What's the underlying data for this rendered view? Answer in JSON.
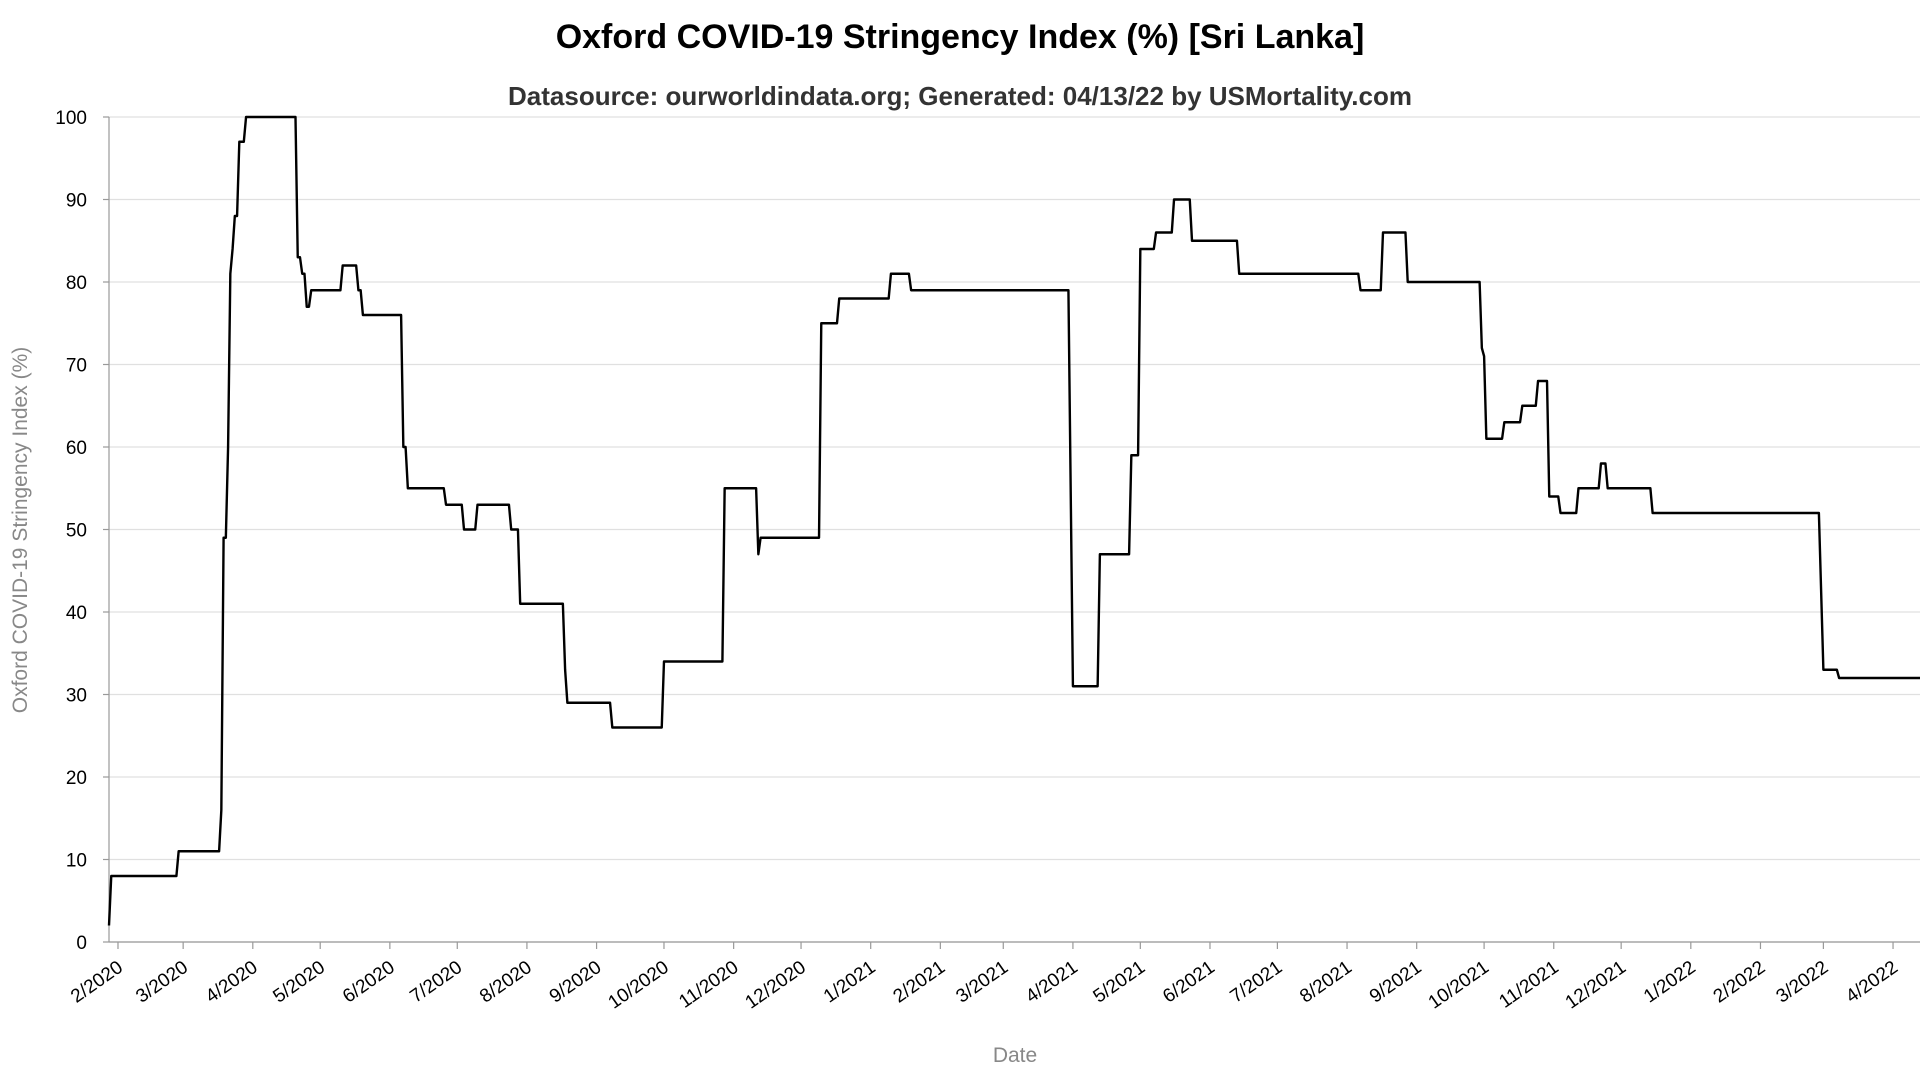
{
  "chart_data": {
    "type": "line",
    "title": "Oxford COVID-19 Stringency Index (%) [Sri Lanka]",
    "subtitle": "Datasource: ourworldindata.org; Generated: 04/13/22 by USMortality.com",
    "xlabel": "Date",
    "ylabel": "Oxford COVID-19 Stringency Index (%)",
    "ylim": [
      0,
      100
    ],
    "xlim": [
      "2020-01-28",
      "2022-04-13"
    ],
    "grid": "horizontal",
    "y_ticks": [
      0,
      10,
      20,
      30,
      40,
      50,
      60,
      70,
      80,
      90,
      100
    ],
    "x_ticks": [
      {
        "date": "2020-02-01",
        "label": "2/2020"
      },
      {
        "date": "2020-03-01",
        "label": "3/2020"
      },
      {
        "date": "2020-04-01",
        "label": "4/2020"
      },
      {
        "date": "2020-05-01",
        "label": "5/2020"
      },
      {
        "date": "2020-06-01",
        "label": "6/2020"
      },
      {
        "date": "2020-07-01",
        "label": "7/2020"
      },
      {
        "date": "2020-08-01",
        "label": "8/2020"
      },
      {
        "date": "2020-09-01",
        "label": "9/2020"
      },
      {
        "date": "2020-10-01",
        "label": "10/2020"
      },
      {
        "date": "2020-11-01",
        "label": "11/2020"
      },
      {
        "date": "2020-12-01",
        "label": "12/2020"
      },
      {
        "date": "2021-01-01",
        "label": "1/2021"
      },
      {
        "date": "2021-02-01",
        "label": "2/2021"
      },
      {
        "date": "2021-03-01",
        "label": "3/2021"
      },
      {
        "date": "2021-04-01",
        "label": "4/2021"
      },
      {
        "date": "2021-05-01",
        "label": "5/2021"
      },
      {
        "date": "2021-06-01",
        "label": "6/2021"
      },
      {
        "date": "2021-07-01",
        "label": "7/2021"
      },
      {
        "date": "2021-08-01",
        "label": "8/2021"
      },
      {
        "date": "2021-09-01",
        "label": "9/2021"
      },
      {
        "date": "2021-10-01",
        "label": "10/2021"
      },
      {
        "date": "2021-11-01",
        "label": "11/2021"
      },
      {
        "date": "2021-12-01",
        "label": "12/2021"
      },
      {
        "date": "2022-01-01",
        "label": "1/2022"
      },
      {
        "date": "2022-02-01",
        "label": "2/2022"
      },
      {
        "date": "2022-03-01",
        "label": "3/2022"
      },
      {
        "date": "2022-04-01",
        "label": "4/2022"
      }
    ],
    "series": [
      {
        "color": "#000000",
        "points": [
          [
            "2020-01-28",
            2
          ],
          [
            "2020-01-29",
            8
          ],
          [
            "2020-02-27",
            8
          ],
          [
            "2020-02-28",
            11
          ],
          [
            "2020-03-17",
            11
          ],
          [
            "2020-03-18",
            16
          ],
          [
            "2020-03-19",
            49
          ],
          [
            "2020-03-20",
            49
          ],
          [
            "2020-03-21",
            60
          ],
          [
            "2020-03-22",
            81
          ],
          [
            "2020-03-23",
            84
          ],
          [
            "2020-03-24",
            88
          ],
          [
            "2020-03-25",
            88
          ],
          [
            "2020-03-26",
            97
          ],
          [
            "2020-03-28",
            97
          ],
          [
            "2020-03-29",
            100
          ],
          [
            "2020-04-20",
            100
          ],
          [
            "2020-04-21",
            83
          ],
          [
            "2020-04-22",
            83
          ],
          [
            "2020-04-23",
            81
          ],
          [
            "2020-04-24",
            81
          ],
          [
            "2020-04-25",
            77
          ],
          [
            "2020-04-26",
            77
          ],
          [
            "2020-04-27",
            79
          ],
          [
            "2020-05-10",
            79
          ],
          [
            "2020-05-11",
            82
          ],
          [
            "2020-05-17",
            82
          ],
          [
            "2020-05-18",
            79
          ],
          [
            "2020-05-19",
            79
          ],
          [
            "2020-05-20",
            76
          ],
          [
            "2020-06-06",
            76
          ],
          [
            "2020-06-07",
            60
          ],
          [
            "2020-06-08",
            60
          ],
          [
            "2020-06-09",
            55
          ],
          [
            "2020-06-25",
            55
          ],
          [
            "2020-06-26",
            53
          ],
          [
            "2020-07-03",
            53
          ],
          [
            "2020-07-04",
            50
          ],
          [
            "2020-07-09",
            50
          ],
          [
            "2020-07-10",
            53
          ],
          [
            "2020-07-24",
            53
          ],
          [
            "2020-07-25",
            50
          ],
          [
            "2020-07-28",
            50
          ],
          [
            "2020-07-29",
            41
          ],
          [
            "2020-08-17",
            41
          ],
          [
            "2020-08-18",
            33
          ],
          [
            "2020-08-19",
            29
          ],
          [
            "2020-09-07",
            29
          ],
          [
            "2020-09-08",
            26
          ],
          [
            "2020-09-30",
            26
          ],
          [
            "2020-10-01",
            34
          ],
          [
            "2020-10-27",
            34
          ],
          [
            "2020-10-28",
            55
          ],
          [
            "2020-11-11",
            55
          ],
          [
            "2020-11-12",
            47
          ],
          [
            "2020-11-13",
            49
          ],
          [
            "2020-12-09",
            49
          ],
          [
            "2020-12-10",
            75
          ],
          [
            "2020-12-17",
            75
          ],
          [
            "2020-12-18",
            78
          ],
          [
            "2021-01-09",
            78
          ],
          [
            "2021-01-10",
            81
          ],
          [
            "2021-01-18",
            81
          ],
          [
            "2021-01-19",
            79
          ],
          [
            "2021-03-30",
            79
          ],
          [
            "2021-04-01",
            31
          ],
          [
            "2021-04-12",
            31
          ],
          [
            "2021-04-13",
            47
          ],
          [
            "2021-04-26",
            47
          ],
          [
            "2021-04-27",
            59
          ],
          [
            "2021-04-30",
            59
          ],
          [
            "2021-05-01",
            84
          ],
          [
            "2021-05-07",
            84
          ],
          [
            "2021-05-08",
            86
          ],
          [
            "2021-05-15",
            86
          ],
          [
            "2021-05-16",
            90
          ],
          [
            "2021-05-23",
            90
          ],
          [
            "2021-05-24",
            85
          ],
          [
            "2021-06-13",
            85
          ],
          [
            "2021-06-14",
            81
          ],
          [
            "2021-08-06",
            81
          ],
          [
            "2021-08-07",
            79
          ],
          [
            "2021-08-16",
            79
          ],
          [
            "2021-08-17",
            86
          ],
          [
            "2021-08-27",
            86
          ],
          [
            "2021-08-28",
            80
          ],
          [
            "2021-09-29",
            80
          ],
          [
            "2021-09-30",
            72
          ],
          [
            "2021-10-01",
            71
          ],
          [
            "2021-10-02",
            61
          ],
          [
            "2021-10-09",
            61
          ],
          [
            "2021-10-10",
            63
          ],
          [
            "2021-10-17",
            63
          ],
          [
            "2021-10-18",
            65
          ],
          [
            "2021-10-24",
            65
          ],
          [
            "2021-10-25",
            68
          ],
          [
            "2021-10-29",
            68
          ],
          [
            "2021-10-30",
            54
          ],
          [
            "2021-11-03",
            54
          ],
          [
            "2021-11-04",
            52
          ],
          [
            "2021-11-11",
            52
          ],
          [
            "2021-11-12",
            55
          ],
          [
            "2021-11-21",
            55
          ],
          [
            "2021-11-22",
            58
          ],
          [
            "2021-11-24",
            58
          ],
          [
            "2021-11-25",
            55
          ],
          [
            "2021-12-14",
            55
          ],
          [
            "2021-12-15",
            52
          ],
          [
            "2022-02-27",
            52
          ],
          [
            "2022-03-01",
            33
          ],
          [
            "2022-03-07",
            33
          ],
          [
            "2022-03-08",
            32
          ],
          [
            "2022-04-13",
            32
          ]
        ]
      }
    ]
  }
}
